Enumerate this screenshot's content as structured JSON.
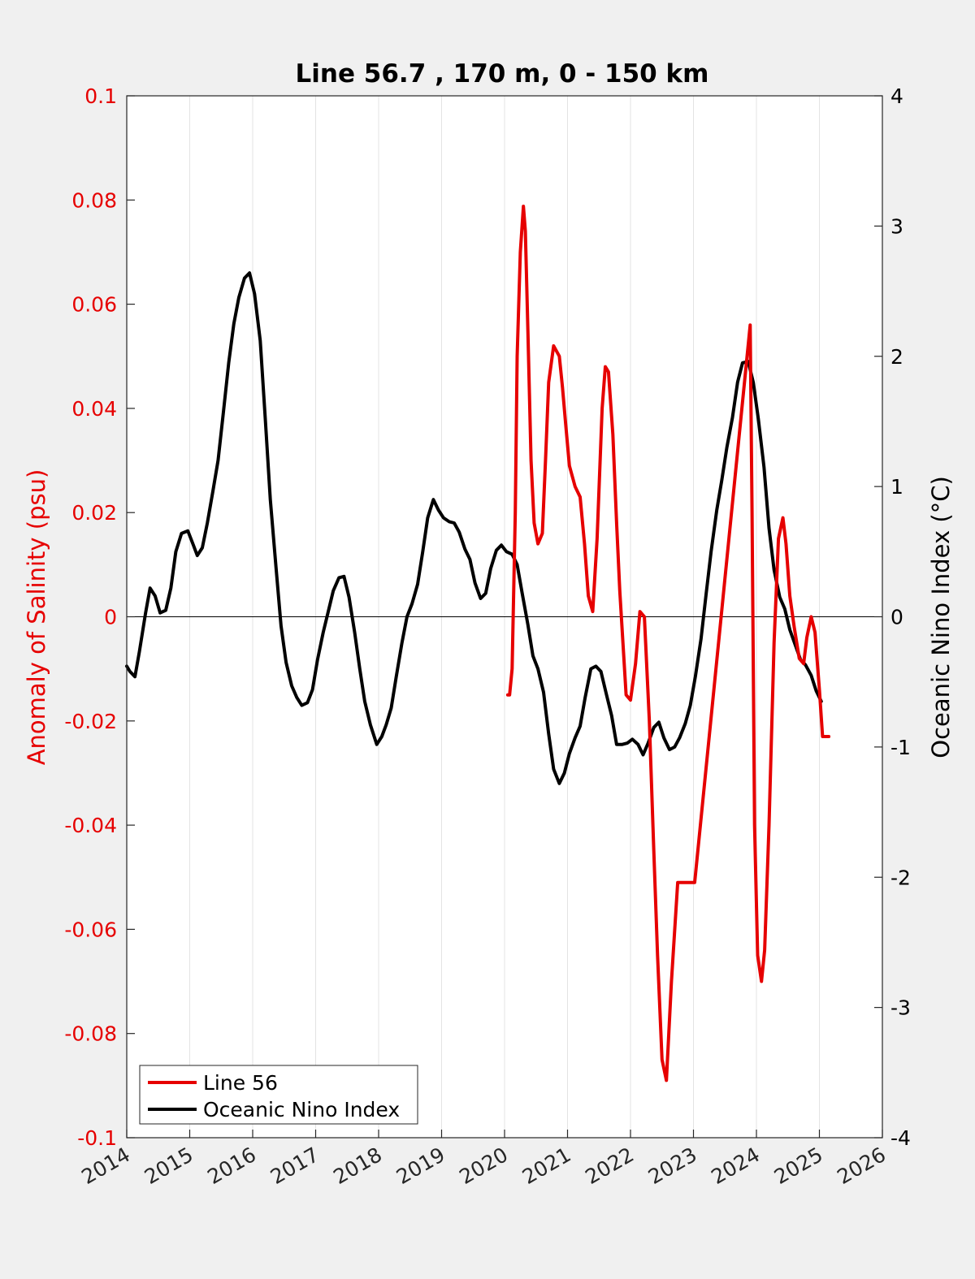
{
  "chart_data": {
    "type": "line",
    "title": "Line 56.7 , 170 m, 0 - 150 km",
    "xlabel": "",
    "ylabel_left": "Anomaly of Salinity (psu)",
    "ylabel_right": "Oceanic Nino Index (°C)",
    "xlim": [
      2014,
      2026
    ],
    "ylim_left": [
      -0.1,
      0.1
    ],
    "ylim_right": [
      -4,
      4
    ],
    "x_ticks": [
      "2014",
      "2015",
      "2016",
      "2017",
      "2018",
      "2019",
      "2020",
      "2021",
      "2022",
      "2023",
      "2024",
      "2025",
      "2026"
    ],
    "y_ticks_left": [
      "0.1",
      "0.08",
      "0.06",
      "0.04",
      "0.02",
      "0",
      "-0.02",
      "-0.04",
      "-0.06",
      "-0.08",
      "-0.1"
    ],
    "y_ticks_right": [
      "4",
      "3",
      "2",
      "1",
      "0",
      "-1",
      "-2",
      "-3",
      "-4"
    ],
    "grid": "vertical",
    "legend_position": "bottom-left",
    "colors": {
      "left_axis": "#e60000",
      "line56": "#e60000",
      "oni": "#000000"
    },
    "series": [
      {
        "name": "Line 56",
        "axis": "left",
        "color": "#e60000",
        "x": [
          2020.05,
          2020.08,
          2020.12,
          2020.17,
          2020.2,
          2020.25,
          2020.3,
          2020.33,
          2020.37,
          2020.42,
          2020.47,
          2020.53,
          2020.6,
          2020.65,
          2020.7,
          2020.78,
          2020.87,
          2020.92,
          2020.97,
          2021.03,
          2021.12,
          2021.2,
          2021.27,
          2021.33,
          2021.4,
          2021.47,
          2021.55,
          2021.6,
          2021.65,
          2021.72,
          2021.78,
          2021.83,
          2021.88,
          2021.93,
          2022.0,
          2022.08,
          2022.15,
          2022.22,
          2022.3,
          2022.37,
          2022.43,
          2022.5,
          2022.57,
          2022.65,
          2022.75,
          2022.85,
          2022.92,
          2022.97,
          2023.02,
          2023.02,
          2023.9,
          2023.93,
          2023.97,
          2024.02,
          2024.08,
          2024.13,
          2024.2,
          2024.28,
          2024.35,
          2024.42,
          2024.47,
          2024.53,
          2024.6,
          2024.68,
          2024.75,
          2024.8,
          2024.87,
          2024.93,
          2025.0,
          2025.05,
          2025.1,
          2025.15
        ],
        "y": [
          -0.015,
          -0.015,
          -0.01,
          0.02,
          0.05,
          0.07,
          0.0788,
          0.074,
          0.055,
          0.03,
          0.018,
          0.014,
          0.016,
          0.03,
          0.045,
          0.052,
          0.05,
          0.044,
          0.037,
          0.029,
          0.025,
          0.023,
          0.014,
          0.004,
          0.001,
          0.015,
          0.04,
          0.048,
          0.047,
          0.035,
          0.018,
          0.005,
          -0.005,
          -0.015,
          -0.016,
          -0.009,
          0.001,
          0.0,
          -0.02,
          -0.045,
          -0.065,
          -0.085,
          -0.089,
          -0.07,
          -0.051,
          -0.051,
          -0.051,
          -0.051,
          -0.051,
          -0.051,
          0.056,
          0.02,
          -0.04,
          -0.065,
          -0.07,
          -0.064,
          -0.04,
          -0.005,
          0.015,
          0.019,
          0.014,
          0.004,
          -0.002,
          -0.008,
          -0.009,
          -0.004,
          0.0,
          -0.003,
          -0.014,
          -0.023,
          -0.023,
          -0.023
        ]
      },
      {
        "name": "Oceanic Nino Index",
        "axis": "right",
        "color": "#000000",
        "x": [
          2014.0,
          2014.05,
          2014.13,
          2014.2,
          2014.3,
          2014.37,
          2014.45,
          2014.53,
          2014.62,
          2014.7,
          2014.78,
          2014.87,
          2014.97,
          2015.05,
          2015.12,
          2015.2,
          2015.28,
          2015.37,
          2015.45,
          2015.53,
          2015.62,
          2015.7,
          2015.78,
          2015.87,
          2015.95,
          2016.03,
          2016.12,
          2016.2,
          2016.28,
          2016.37,
          2016.45,
          2016.53,
          2016.62,
          2016.7,
          2016.78,
          2016.87,
          2016.95,
          2017.03,
          2017.12,
          2017.2,
          2017.28,
          2017.37,
          2017.45,
          2017.53,
          2017.62,
          2017.7,
          2017.78,
          2017.87,
          2017.97,
          2018.05,
          2018.12,
          2018.2,
          2018.28,
          2018.37,
          2018.45,
          2018.53,
          2018.62,
          2018.7,
          2018.78,
          2018.87,
          2018.95,
          2019.03,
          2019.12,
          2019.2,
          2019.28,
          2019.37,
          2019.45,
          2019.53,
          2019.62,
          2019.7,
          2019.78,
          2019.87,
          2019.95,
          2020.03,
          2020.12,
          2020.2,
          2020.28,
          2020.37,
          2020.45,
          2020.53,
          2020.62,
          2020.7,
          2020.78,
          2020.87,
          2020.95,
          2021.03,
          2021.12,
          2021.2,
          2021.28,
          2021.37,
          2021.45,
          2021.53,
          2021.62,
          2021.7,
          2021.78,
          2021.87,
          2021.95,
          2022.03,
          2022.12,
          2022.2,
          2022.28,
          2022.37,
          2022.45,
          2022.53,
          2022.62,
          2022.7,
          2022.78,
          2022.87,
          2022.95,
          2023.03,
          2023.12,
          2023.2,
          2023.28,
          2023.37,
          2023.45,
          2023.53,
          2023.62,
          2023.7,
          2023.78,
          2023.87,
          2023.95,
          2024.03,
          2024.12,
          2024.2,
          2024.28,
          2024.37,
          2024.45,
          2024.53,
          2024.62,
          2024.7,
          2024.78,
          2024.87,
          2024.95,
          2025.03
        ],
        "y": [
          -0.38,
          -0.42,
          -0.46,
          -0.27,
          0.03,
          0.22,
          0.16,
          0.03,
          0.05,
          0.22,
          0.5,
          0.64,
          0.66,
          0.56,
          0.47,
          0.53,
          0.72,
          0.97,
          1.2,
          1.55,
          1.95,
          2.25,
          2.45,
          2.6,
          2.64,
          2.48,
          2.12,
          1.52,
          0.9,
          0.38,
          -0.07,
          -0.35,
          -0.53,
          -0.62,
          -0.68,
          -0.66,
          -0.56,
          -0.33,
          -0.12,
          0.04,
          0.2,
          0.3,
          0.31,
          0.15,
          -0.12,
          -0.4,
          -0.65,
          -0.83,
          -0.98,
          -0.92,
          -0.83,
          -0.7,
          -0.46,
          -0.2,
          0.0,
          0.1,
          0.25,
          0.5,
          0.76,
          0.9,
          0.82,
          0.76,
          0.73,
          0.72,
          0.65,
          0.52,
          0.44,
          0.26,
          0.14,
          0.18,
          0.37,
          0.51,
          0.55,
          0.5,
          0.48,
          0.4,
          0.18,
          -0.06,
          -0.3,
          -0.4,
          -0.58,
          -0.9,
          -1.17,
          -1.28,
          -1.2,
          -1.05,
          -0.93,
          -0.84,
          -0.62,
          -0.4,
          -0.38,
          -0.42,
          -0.6,
          -0.76,
          -0.98,
          -0.98,
          -0.97,
          -0.94,
          -0.98,
          -1.06,
          -0.97,
          -0.85,
          -0.81,
          -0.93,
          -1.02,
          -1.0,
          -0.93,
          -0.82,
          -0.68,
          -0.46,
          -0.17,
          0.17,
          0.5,
          0.82,
          1.05,
          1.3,
          1.53,
          1.8,
          1.95,
          1.96,
          1.8,
          1.52,
          1.15,
          0.68,
          0.36,
          0.15,
          0.06,
          -0.1,
          -0.22,
          -0.33,
          -0.37,
          -0.45,
          -0.57,
          -0.65
        ]
      }
    ]
  }
}
